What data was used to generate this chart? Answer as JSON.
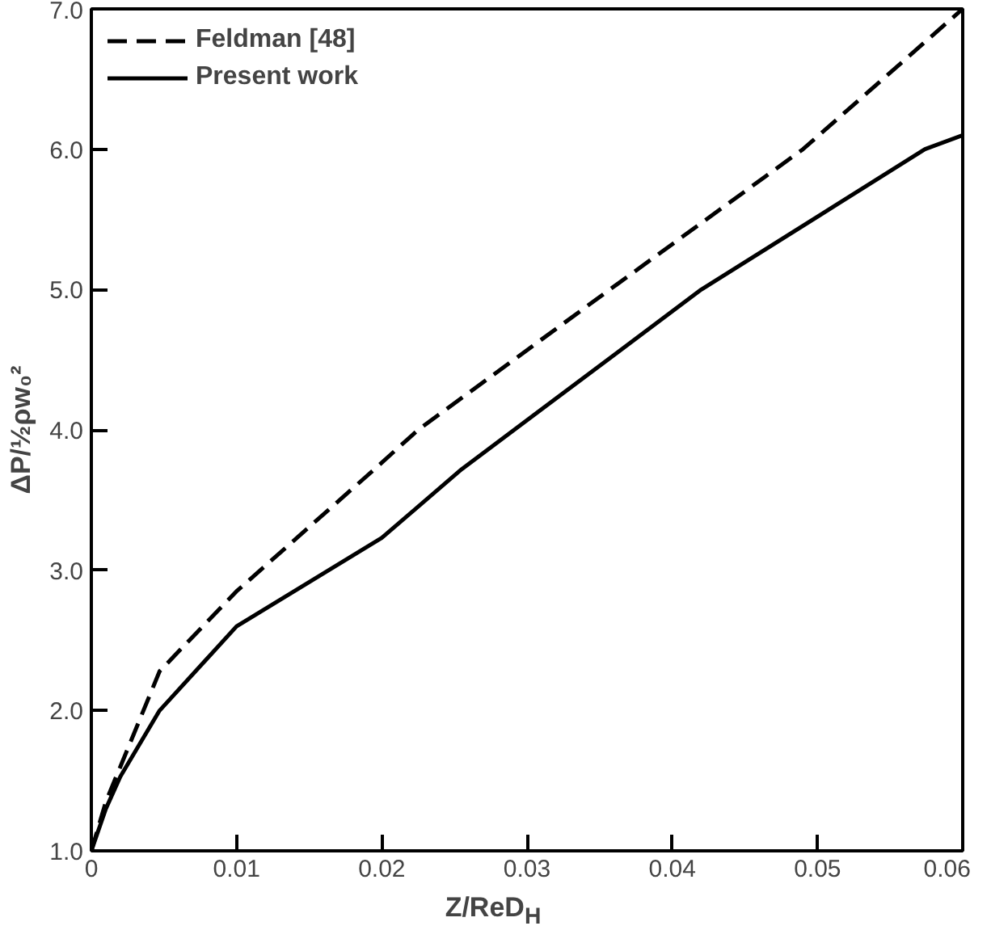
{
  "chart_data": {
    "type": "line",
    "xlabel": "Z/ReD$_{H}$",
    "ylabel": "ΔP/½ρw₀²",
    "xlim": [
      0,
      0.06
    ],
    "ylim": [
      1.0,
      7.0
    ],
    "xticks": [
      0,
      {
        "value": 0.01,
        "label": "0.01"
      },
      {
        "value": 0.02,
        "label": "0.02"
      },
      {
        "value": 0.03,
        "label": "0.03"
      },
      {
        "value": 0.04,
        "label": "0.04"
      },
      {
        "value": 0.05,
        "label": "0.05"
      },
      {
        "value": 0.06,
        "label": "0.06"
      }
    ],
    "yticks": [
      {
        "value": 1,
        "label": "1.0"
      },
      {
        "value": 2,
        "label": "2.0"
      },
      {
        "value": 3,
        "label": "3.0"
      },
      {
        "value": 4,
        "label": "4.0"
      },
      {
        "value": 5,
        "label": "5.0"
      },
      {
        "value": 6,
        "label": "6.0"
      },
      {
        "value": 7,
        "label": "7.0"
      }
    ],
    "grid": false,
    "legend": "top left",
    "series": [
      {
        "name": "Feldman [48]",
        "color": "#000000",
        "line_style": "dashed",
        "x": [
          0,
          0.001,
          0.002,
          0.0047,
          0.01,
          0.0195,
          0.0225,
          0.0357,
          0.049,
          0.06
        ],
        "values": [
          1.0,
          1.35,
          1.6,
          2.28,
          2.85,
          3.72,
          4.0,
          5.0,
          6.0,
          7.0
        ]
      },
      {
        "name": "Present work",
        "color": "#000000",
        "line_style": "solid",
        "x": [
          0,
          0.001,
          0.002,
          0.0047,
          0.01,
          0.02,
          0.0255,
          0.042,
          0.0574,
          0.06
        ],
        "values": [
          1.0,
          1.3,
          1.53,
          2.0,
          2.6,
          3.23,
          3.72,
          5.0,
          6.0,
          6.1
        ]
      }
    ]
  }
}
